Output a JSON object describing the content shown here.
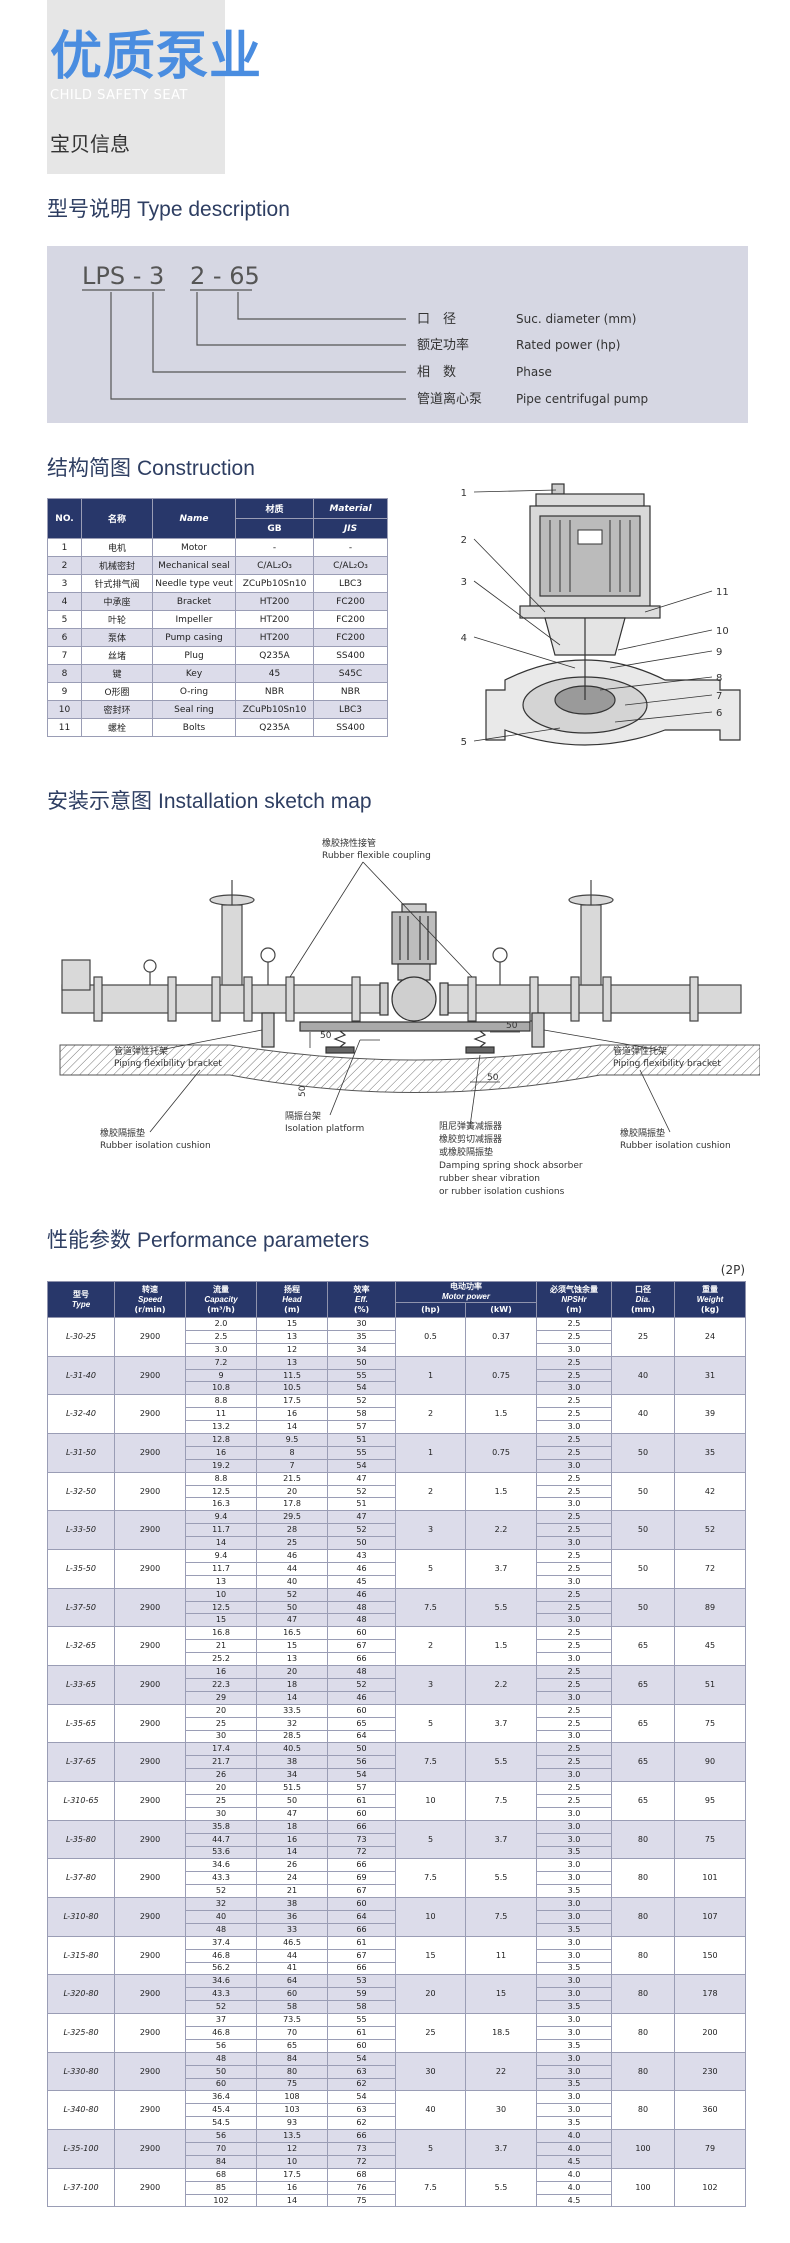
{
  "header": {
    "title": "优质泵业",
    "subtitle": "CHILD SAFETY SEAT",
    "label": "宝贝信息"
  },
  "type_description": {
    "title_zh": "型号说明",
    "title_en": "Type description",
    "code": [
      "LPS - 3",
      "2 - 65"
    ],
    "legend": [
      {
        "zh": "口　径",
        "en": "Suc. diameter (mm)"
      },
      {
        "zh": "额定功率",
        "en": "Rated power (hp)"
      },
      {
        "zh": "相　数",
        "en": "Phase"
      },
      {
        "zh": "管道离心泵",
        "en": "Pipe centrifugal pump"
      }
    ]
  },
  "construction": {
    "title_zh": "结构简图",
    "title_en": "Construction",
    "header": {
      "no": "NO.",
      "zh": "名称",
      "en": "Name",
      "material_zh": "材质",
      "material_en": "Material",
      "gb": "GB",
      "jis": "JIS"
    },
    "rows": [
      [
        "1",
        "电机",
        "Motor",
        "-",
        "-"
      ],
      [
        "2",
        "机械密封",
        "Mechanical seal",
        "C/AL₂O₃",
        "C/AL₂O₃"
      ],
      [
        "3",
        "针式排气阀",
        "Needle type veut",
        "ZCuPb10Sn10",
        "LBC3"
      ],
      [
        "4",
        "中承座",
        "Bracket",
        "HT200",
        "FC200"
      ],
      [
        "5",
        "叶轮",
        "Impeller",
        "HT200",
        "FC200"
      ],
      [
        "6",
        "泵体",
        "Pump casing",
        "HT200",
        "FC200"
      ],
      [
        "7",
        "丝堵",
        "Plug",
        "Q235A",
        "SS400"
      ],
      [
        "8",
        "键",
        "Key",
        "45",
        "S45C"
      ],
      [
        "9",
        "O形圈",
        "O-ring",
        "NBR",
        "NBR"
      ],
      [
        "10",
        "密封环",
        "Seal ring",
        "ZCuPb10Sn10",
        "LBC3"
      ],
      [
        "11",
        "螺栓",
        "Bolts",
        "Q235A",
        "SS400"
      ]
    ],
    "callouts": [
      "1",
      "2",
      "3",
      "4",
      "5",
      "11",
      "10",
      "9",
      "8",
      "7",
      "6"
    ]
  },
  "installation": {
    "title_zh": "安装示意图",
    "title_en": "Installation sketch map",
    "coupling": [
      "橡胶挠性接管",
      "Rubber flexible coupling"
    ],
    "bracket_left": [
      "管道弹性托架",
      "Piping flexibility bracket"
    ],
    "bracket_right": [
      "管道弹性托架",
      "Piping flexibility bracket"
    ],
    "platform": [
      "隔振台架",
      "Isolation platform"
    ],
    "cushion_left": [
      "橡胶隔振垫",
      "Rubber isolation cushion"
    ],
    "cushion_right": [
      "橡胶隔振垫",
      "Rubber isolation cushion"
    ],
    "absorber": [
      "阻尼弹簧减振器",
      "橡胶剪切减振器",
      "或橡胶隔振垫",
      "Damping spring shock absorber",
      "rubber shear vibration",
      "or rubber isolation cushions"
    ],
    "dims": [
      "50",
      "50",
      "50",
      "50"
    ]
  },
  "performance": {
    "title_zh": "性能参数",
    "title_en": "Performance parameters",
    "note": "(2P)",
    "header": [
      {
        "zh": "型号",
        "en": "Type"
      },
      {
        "zh": "转速",
        "en": "Speed",
        "unit": "(r/min)"
      },
      {
        "zh": "流量",
        "en": "Capacity",
        "unit": "(m³/h)"
      },
      {
        "zh": "扬程",
        "en": "Head",
        "unit": "(m)"
      },
      {
        "zh": "效率",
        "en": "Eff.",
        "unit": "(%)"
      },
      {
        "zh": "电动功率",
        "en": "Motor power",
        "sub": [
          "(hp)",
          "(kW)"
        ]
      },
      {
        "zh": "必须气蚀余量",
        "en": "NPSHr",
        "unit": "(m)"
      },
      {
        "zh": "口径",
        "en": "Dia.",
        "unit": "(mm)"
      },
      {
        "zh": "重量",
        "en": "Weight",
        "unit": "(kg)"
      }
    ],
    "rows": [
      {
        "type": "L-30-25",
        "speed": "2900",
        "capacity": [
          "2.0",
          "2.5",
          "3.0"
        ],
        "head": [
          "15",
          "13",
          "12"
        ],
        "eff": [
          "30",
          "35",
          "34"
        ],
        "hp": "0.5",
        "kw": "0.37",
        "npsh": [
          "2.5",
          "2.5",
          "3.0"
        ],
        "dia": "25",
        "weight": "24"
      },
      {
        "type": "L-31-40",
        "speed": "2900",
        "capacity": [
          "7.2",
          "9",
          "10.8"
        ],
        "head": [
          "13",
          "11.5",
          "10.5"
        ],
        "eff": [
          "50",
          "55",
          "54"
        ],
        "hp": "1",
        "kw": "0.75",
        "npsh": [
          "2.5",
          "2.5",
          "3.0"
        ],
        "dia": "40",
        "weight": "31"
      },
      {
        "type": "L-32-40",
        "speed": "2900",
        "capacity": [
          "8.8",
          "11",
          "13.2"
        ],
        "head": [
          "17.5",
          "16",
          "14"
        ],
        "eff": [
          "52",
          "58",
          "57"
        ],
        "hp": "2",
        "kw": "1.5",
        "npsh": [
          "2.5",
          "2.5",
          "3.0"
        ],
        "dia": "40",
        "weight": "39"
      },
      {
        "type": "L-31-50",
        "speed": "2900",
        "capacity": [
          "12.8",
          "16",
          "19.2"
        ],
        "head": [
          "9.5",
          "8",
          "7"
        ],
        "eff": [
          "51",
          "55",
          "54"
        ],
        "hp": "1",
        "kw": "0.75",
        "npsh": [
          "2.5",
          "2.5",
          "3.0"
        ],
        "dia": "50",
        "weight": "35"
      },
      {
        "type": "L-32-50",
        "speed": "2900",
        "capacity": [
          "8.8",
          "12.5",
          "16.3"
        ],
        "head": [
          "21.5",
          "20",
          "17.8"
        ],
        "eff": [
          "47",
          "52",
          "51"
        ],
        "hp": "2",
        "kw": "1.5",
        "npsh": [
          "2.5",
          "2.5",
          "3.0"
        ],
        "dia": "50",
        "weight": "42"
      },
      {
        "type": "L-33-50",
        "speed": "2900",
        "capacity": [
          "9.4",
          "11.7",
          "14"
        ],
        "head": [
          "29.5",
          "28",
          "25"
        ],
        "eff": [
          "47",
          "52",
          "50"
        ],
        "hp": "3",
        "kw": "2.2",
        "npsh": [
          "2.5",
          "2.5",
          "3.0"
        ],
        "dia": "50",
        "weight": "52"
      },
      {
        "type": "L-35-50",
        "speed": "2900",
        "capacity": [
          "9.4",
          "11.7",
          "13"
        ],
        "head": [
          "46",
          "44",
          "40"
        ],
        "eff": [
          "43",
          "46",
          "45"
        ],
        "hp": "5",
        "kw": "3.7",
        "npsh": [
          "2.5",
          "2.5",
          "3.0"
        ],
        "dia": "50",
        "weight": "72"
      },
      {
        "type": "L-37-50",
        "speed": "2900",
        "capacity": [
          "10",
          "12.5",
          "15"
        ],
        "head": [
          "52",
          "50",
          "47"
        ],
        "eff": [
          "46",
          "48",
          "48"
        ],
        "hp": "7.5",
        "kw": "5.5",
        "npsh": [
          "2.5",
          "2.5",
          "3.0"
        ],
        "dia": "50",
        "weight": "89"
      },
      {
        "type": "L-32-65",
        "speed": "2900",
        "capacity": [
          "16.8",
          "21",
          "25.2"
        ],
        "head": [
          "16.5",
          "15",
          "13"
        ],
        "eff": [
          "60",
          "67",
          "66"
        ],
        "hp": "2",
        "kw": "1.5",
        "npsh": [
          "2.5",
          "2.5",
          "3.0"
        ],
        "dia": "65",
        "weight": "45"
      },
      {
        "type": "L-33-65",
        "speed": "2900",
        "capacity": [
          "16",
          "22.3",
          "29"
        ],
        "head": [
          "20",
          "18",
          "14"
        ],
        "eff": [
          "48",
          "52",
          "46"
        ],
        "hp": "3",
        "kw": "2.2",
        "npsh": [
          "2.5",
          "2.5",
          "3.0"
        ],
        "dia": "65",
        "weight": "51"
      },
      {
        "type": "L-35-65",
        "speed": "2900",
        "capacity": [
          "20",
          "25",
          "30"
        ],
        "head": [
          "33.5",
          "32",
          "28.5"
        ],
        "eff": [
          "60",
          "65",
          "64"
        ],
        "hp": "5",
        "kw": "3.7",
        "npsh": [
          "2.5",
          "2.5",
          "3.0"
        ],
        "dia": "65",
        "weight": "75"
      },
      {
        "type": "L-37-65",
        "speed": "2900",
        "capacity": [
          "17.4",
          "21.7",
          "26"
        ],
        "head": [
          "40.5",
          "38",
          "34"
        ],
        "eff": [
          "50",
          "56",
          "54"
        ],
        "hp": "7.5",
        "kw": "5.5",
        "npsh": [
          "2.5",
          "2.5",
          "3.0"
        ],
        "dia": "65",
        "weight": "90"
      },
      {
        "type": "L-310-65",
        "speed": "2900",
        "capacity": [
          "20",
          "25",
          "30"
        ],
        "head": [
          "51.5",
          "50",
          "47"
        ],
        "eff": [
          "57",
          "61",
          "60"
        ],
        "hp": "10",
        "kw": "7.5",
        "npsh": [
          "2.5",
          "2.5",
          "3.0"
        ],
        "dia": "65",
        "weight": "95"
      },
      {
        "type": "L-35-80",
        "speed": "2900",
        "capacity": [
          "35.8",
          "44.7",
          "53.6"
        ],
        "head": [
          "18",
          "16",
          "14"
        ],
        "eff": [
          "66",
          "73",
          "72"
        ],
        "hp": "5",
        "kw": "3.7",
        "npsh": [
          "3.0",
          "3.0",
          "3.5"
        ],
        "dia": "80",
        "weight": "75"
      },
      {
        "type": "L-37-80",
        "speed": "2900",
        "capacity": [
          "34.6",
          "43.3",
          "52"
        ],
        "head": [
          "26",
          "24",
          "21"
        ],
        "eff": [
          "66",
          "69",
          "67"
        ],
        "hp": "7.5",
        "kw": "5.5",
        "npsh": [
          "3.0",
          "3.0",
          "3.5"
        ],
        "dia": "80",
        "weight": "101"
      },
      {
        "type": "L-310-80",
        "speed": "2900",
        "capacity": [
          "32",
          "40",
          "48"
        ],
        "head": [
          "38",
          "36",
          "33"
        ],
        "eff": [
          "60",
          "64",
          "66"
        ],
        "hp": "10",
        "kw": "7.5",
        "npsh": [
          "3.0",
          "3.0",
          "3.5"
        ],
        "dia": "80",
        "weight": "107"
      },
      {
        "type": "L-315-80",
        "speed": "2900",
        "capacity": [
          "37.4",
          "46.8",
          "56.2"
        ],
        "head": [
          "46.5",
          "44",
          "41"
        ],
        "eff": [
          "61",
          "67",
          "66"
        ],
        "hp": "15",
        "kw": "11",
        "npsh": [
          "3.0",
          "3.0",
          "3.5"
        ],
        "dia": "80",
        "weight": "150"
      },
      {
        "type": "L-320-80",
        "speed": "2900",
        "capacity": [
          "34.6",
          "43.3",
          "52"
        ],
        "head": [
          "64",
          "60",
          "58"
        ],
        "eff": [
          "53",
          "59",
          "58"
        ],
        "hp": "20",
        "kw": "15",
        "npsh": [
          "3.0",
          "3.0",
          "3.5"
        ],
        "dia": "80",
        "weight": "178"
      },
      {
        "type": "L-325-80",
        "speed": "2900",
        "capacity": [
          "37",
          "46.8",
          "56"
        ],
        "head": [
          "73.5",
          "70",
          "65"
        ],
        "eff": [
          "55",
          "61",
          "60"
        ],
        "hp": "25",
        "kw": "18.5",
        "npsh": [
          "3.0",
          "3.0",
          "3.5"
        ],
        "dia": "80",
        "weight": "200"
      },
      {
        "type": "L-330-80",
        "speed": "2900",
        "capacity": [
          "48",
          "50",
          "60"
        ],
        "head": [
          "84",
          "80",
          "75"
        ],
        "eff": [
          "54",
          "63",
          "62"
        ],
        "hp": "30",
        "kw": "22",
        "npsh": [
          "3.0",
          "3.0",
          "3.5"
        ],
        "dia": "80",
        "weight": "230"
      },
      {
        "type": "L-340-80",
        "speed": "2900",
        "capacity": [
          "36.4",
          "45.4",
          "54.5"
        ],
        "head": [
          "108",
          "103",
          "93"
        ],
        "eff": [
          "54",
          "63",
          "62"
        ],
        "hp": "40",
        "kw": "30",
        "npsh": [
          "3.0",
          "3.0",
          "3.5"
        ],
        "dia": "80",
        "weight": "360"
      },
      {
        "type": "L-35-100",
        "speed": "2900",
        "capacity": [
          "56",
          "70",
          "84"
        ],
        "head": [
          "13.5",
          "12",
          "10"
        ],
        "eff": [
          "66",
          "73",
          "72"
        ],
        "hp": "5",
        "kw": "3.7",
        "npsh": [
          "4.0",
          "4.0",
          "4.5"
        ],
        "dia": "100",
        "weight": "79"
      },
      {
        "type": "L-37-100",
        "speed": "2900",
        "capacity": [
          "68",
          "85",
          "102"
        ],
        "head": [
          "17.5",
          "16",
          "14"
        ],
        "eff": [
          "68",
          "76",
          "75"
        ],
        "hp": "7.5",
        "kw": "5.5",
        "npsh": [
          "4.0",
          "4.0",
          "4.5"
        ],
        "dia": "100",
        "weight": "102"
      }
    ]
  }
}
